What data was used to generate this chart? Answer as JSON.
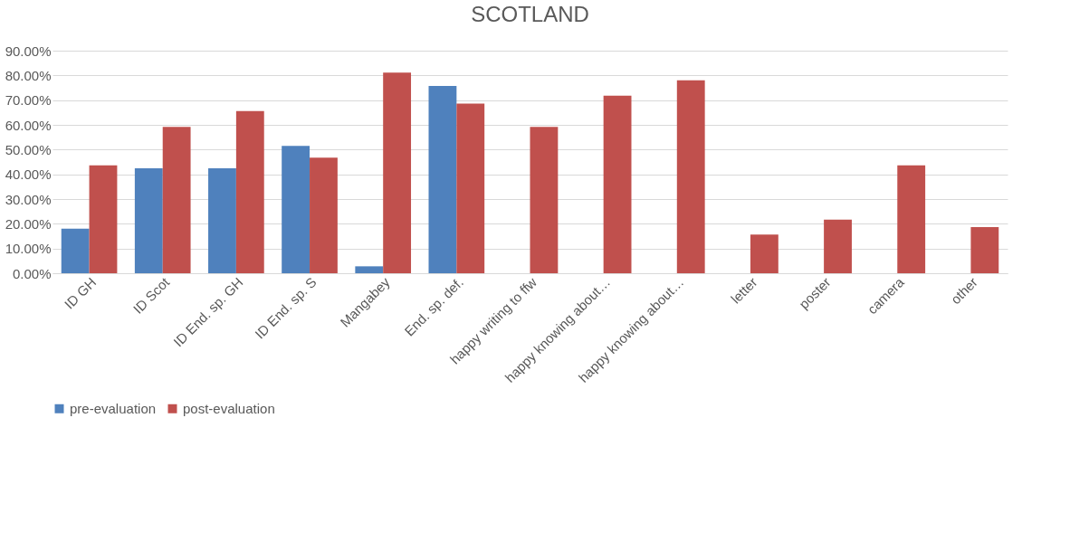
{
  "chart_data": {
    "type": "bar",
    "title": "SCOTLAND",
    "categories": [
      "ID GH",
      "ID Scot",
      "ID End. sp. GH",
      "ID End. sp. S",
      "Mangabey",
      "End. sp. def.",
      "happy writing to ffw",
      "happy knowing about…",
      "happy knowing about…",
      "letter",
      "poster",
      "camera",
      "other"
    ],
    "series": [
      {
        "name": "pre-evaluation",
        "color": "#4f81bd",
        "values": [
          18.0,
          42.4,
          42.4,
          51.5,
          2.8,
          75.7,
          null,
          null,
          null,
          null,
          null,
          null,
          null
        ]
      },
      {
        "name": "post-evaluation",
        "color": "#c0504d",
        "values": [
          43.6,
          59.2,
          65.6,
          46.7,
          81.1,
          68.6,
          59.2,
          71.8,
          78.0,
          15.6,
          21.7,
          43.6,
          18.7
        ]
      }
    ],
    "ylim": [
      0,
      90
    ],
    "yticks": [
      {
        "value": 0,
        "label": "0.00%"
      },
      {
        "value": 10,
        "label": "10.00%"
      },
      {
        "value": 20,
        "label": "20.00%"
      },
      {
        "value": 30,
        "label": "30.00%"
      },
      {
        "value": 40,
        "label": "40.00%"
      },
      {
        "value": 50,
        "label": "50.00%"
      },
      {
        "value": 60,
        "label": "60.00%"
      },
      {
        "value": 70,
        "label": "70.00%"
      },
      {
        "value": 80,
        "label": "80.00%"
      },
      {
        "value": 90,
        "label": "90.00%"
      }
    ],
    "grid": "y",
    "legend": "bottom"
  }
}
